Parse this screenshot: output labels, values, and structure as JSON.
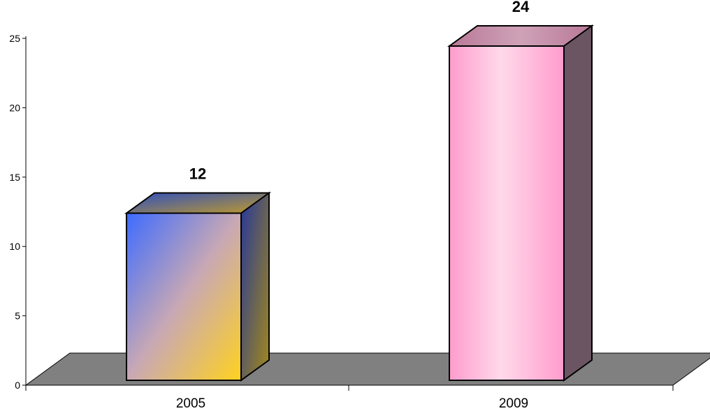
{
  "chart_data": {
    "type": "bar",
    "categories": [
      "2005",
      "2009"
    ],
    "values": [
      12,
      24
    ],
    "data_labels": [
      "12",
      "24"
    ],
    "ylim": [
      0,
      25
    ],
    "y_ticks": [
      "0",
      "5",
      "10",
      "15",
      "20",
      "25"
    ],
    "grid": false,
    "legend": "none",
    "style": "3d",
    "series_colors": [
      {
        "from": "#3d6bff",
        "to": "#ffd21f"
      },
      {
        "from": "#ff9ccd",
        "to": "#ffd9ea"
      }
    ],
    "floor_color": "#808080"
  }
}
